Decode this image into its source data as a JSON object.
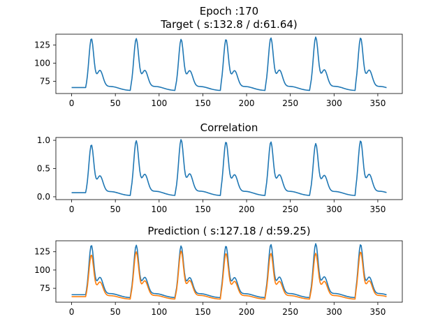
{
  "figure": {
    "title_line1": "Epoch :170",
    "title_line2": "Target ( s:132.8 / d:61.64)"
  },
  "colors": {
    "series1": "#1f77b4",
    "series2": "#ff7f0e",
    "axis": "#000000"
  },
  "chart_data": [
    {
      "type": "line",
      "title": "",
      "xlabel": "",
      "ylabel": "",
      "xlim": [
        -18,
        378
      ],
      "ylim": [
        58,
        140
      ],
      "xticks": [
        0,
        50,
        100,
        150,
        200,
        250,
        300,
        350
      ],
      "yticks": [
        75,
        100,
        125
      ],
      "grid": false,
      "pulse": {
        "period": 51.3,
        "first_peak": 22.5,
        "baseline": 62,
        "peak": 133,
        "notch": 84
      },
      "series": [
        {
          "name": "",
          "color": "#1f77b4",
          "peaks": [
            133,
            133,
            132,
            132,
            134,
            135,
            134
          ]
        }
      ]
    },
    {
      "type": "line",
      "title": "Correlation",
      "xlabel": "",
      "ylabel": "",
      "xlim": [
        -18,
        378
      ],
      "ylim": [
        -0.05,
        1.05
      ],
      "xticks": [
        0,
        50,
        100,
        150,
        200,
        250,
        300,
        350
      ],
      "yticks": [
        0.0,
        0.5,
        1.0
      ],
      "yticklabels": [
        "0.0",
        "0.5",
        "1.0"
      ],
      "grid": false,
      "pulse": {
        "period": 51.3,
        "first_peak": 22.5,
        "baseline": 0.02,
        "peak": 0.95,
        "notch": 0.34
      },
      "series": [
        {
          "name": "",
          "color": "#1f77b4",
          "peaks": [
            0.91,
            0.98,
            1.0,
            0.96,
            0.96,
            0.93,
            0.98
          ]
        }
      ]
    },
    {
      "type": "line",
      "title": "Prediction ( s:127.18 / d:59.25)",
      "xlabel": "",
      "ylabel": "",
      "xlim": [
        -18,
        378
      ],
      "ylim": [
        56,
        140
      ],
      "xticks": [
        0,
        50,
        100,
        150,
        200,
        250,
        300,
        350
      ],
      "yticks": [
        75,
        100,
        125
      ],
      "grid": false,
      "pulse": {
        "period": 51.3,
        "first_peak": 22.5,
        "baseline": 62,
        "peak": 133,
        "notch": 84
      },
      "series": [
        {
          "name": "",
          "color": "#1f77b4",
          "peaks": [
            133,
            133,
            132,
            132,
            134,
            135,
            134
          ]
        },
        {
          "name": "",
          "color": "#ff7f0e",
          "peaks": [
            122,
            126,
            127,
            124,
            124,
            124,
            126
          ],
          "baseline_shift": -2
        }
      ]
    }
  ]
}
